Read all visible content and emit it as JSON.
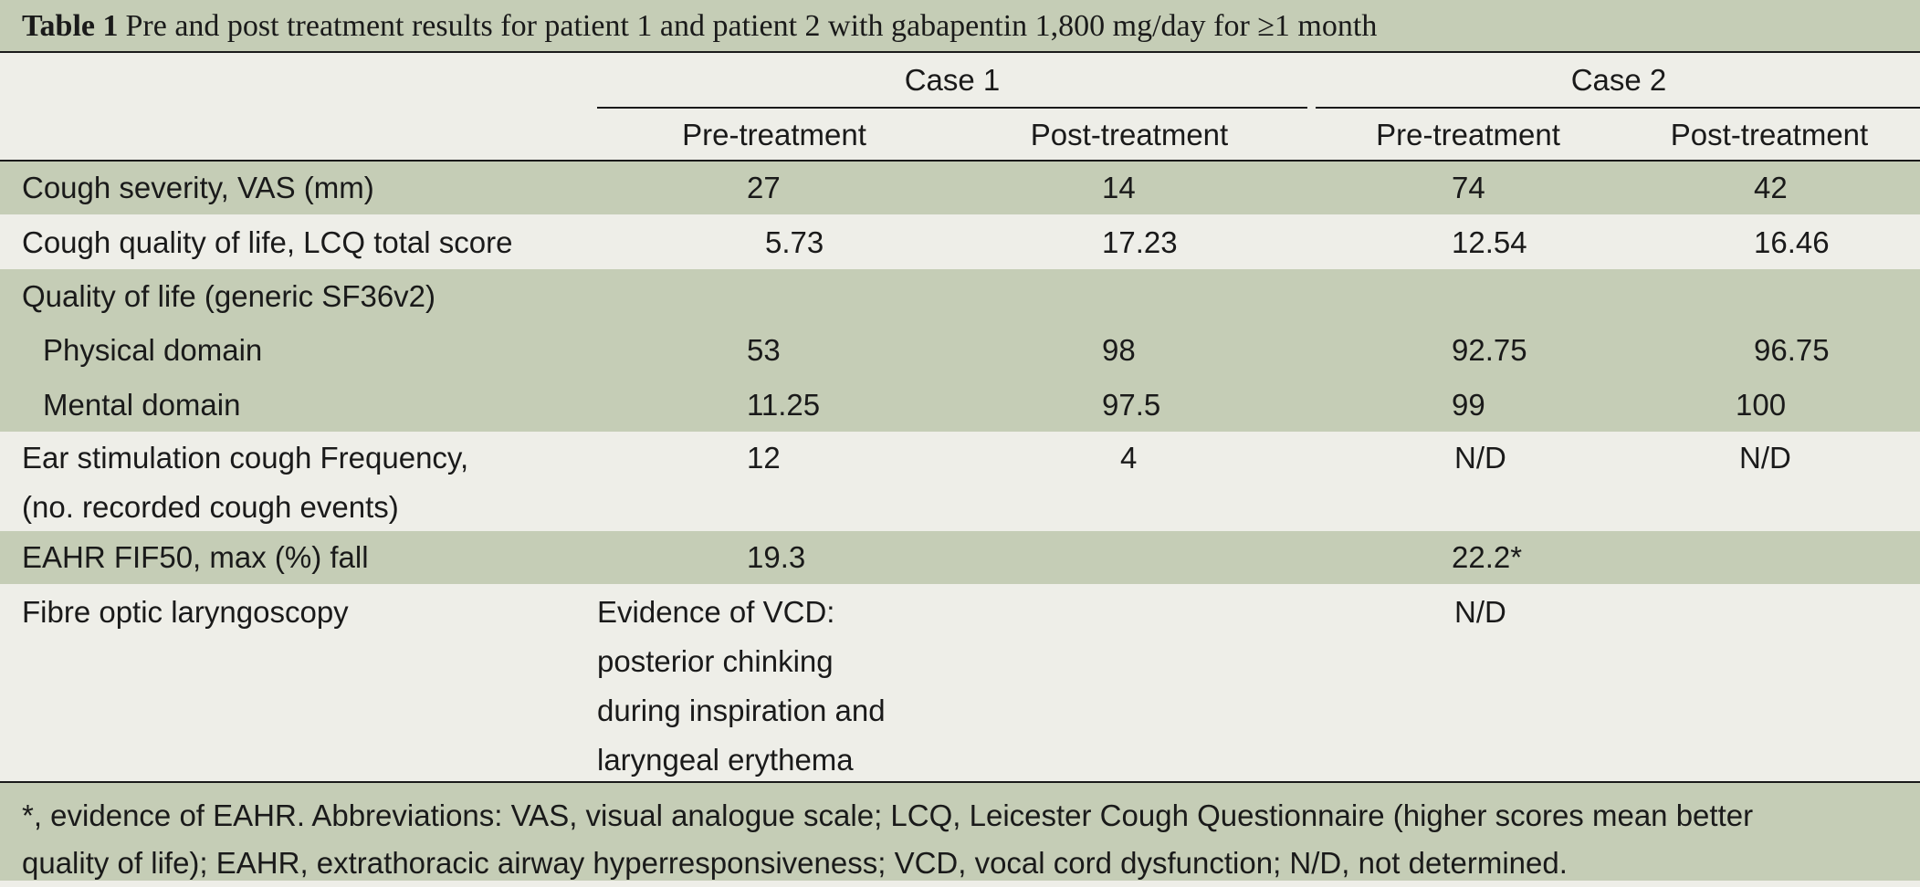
{
  "caption": {
    "label": "Table 1",
    "title": "Pre and post treatment results for patient 1 and patient 2 with gabapentin 1,800 mg/day for ≥1 month"
  },
  "header": {
    "case1": "Case 1",
    "case2": "Case 2",
    "subcols": [
      "Pre-treatment",
      "Post-treatment",
      "Pre-treatment",
      "Post-treatment"
    ]
  },
  "rows": [
    {
      "label": "Cough severity, VAS (mm)",
      "values": [
        "27",
        "14",
        "74",
        "42"
      ]
    },
    {
      "label": "Cough quality of life, LCQ total score",
      "values": [
        "5.73",
        "17.23",
        "12.54",
        "16.46"
      ]
    },
    {
      "label": "Quality of life (generic SF36v2)",
      "values": [
        "",
        "",
        "",
        ""
      ]
    },
    {
      "label": "Physical domain",
      "values": [
        "53",
        "98",
        "92.75",
        "96.75"
      ]
    },
    {
      "label": "Mental domain",
      "values": [
        "11.25",
        "97.5",
        "99",
        "100"
      ]
    },
    {
      "label": [
        "Ear stimulation cough Frequency,",
        "(no. recorded cough events)"
      ],
      "values": [
        "12",
        "4",
        "N/D",
        "N/D"
      ]
    },
    {
      "label": "EAHR FIF50, max (%) fall",
      "values": [
        "19.3",
        "",
        "22.2*",
        ""
      ]
    },
    {
      "label": "Fibre optic laryngoscopy",
      "values": [
        [
          "Evidence of VCD:",
          "posterior chinking",
          "during inspiration and",
          "laryngeal erythema"
        ],
        "",
        "N/D",
        ""
      ]
    }
  ],
  "footnote": [
    "*, evidence of EAHR. Abbreviations: VAS, visual analogue scale; LCQ, Leicester Cough Questionnaire (higher scores mean better",
    "quality of life); EAHR, extrathoracic airway hyperresponsiveness; VCD, vocal cord dysfunction; N/D, not determined."
  ]
}
